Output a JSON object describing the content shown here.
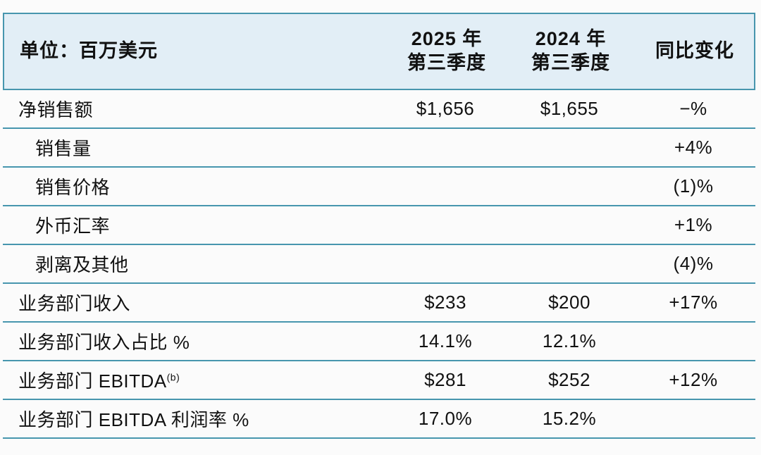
{
  "table": {
    "header": {
      "unit_label": "单位：百万美元",
      "col_2025": "2025 年\n第三季度",
      "col_2024": "2024 年\n第三季度",
      "col_change": "同比变化"
    },
    "rows": [
      {
        "label": "净销售额",
        "indent": false,
        "sup": "",
        "q3_2025": "$1,656",
        "q3_2024": "$1,655",
        "change": "−%"
      },
      {
        "label": "销售量",
        "indent": true,
        "sup": "",
        "q3_2025": "",
        "q3_2024": "",
        "change": "+4%"
      },
      {
        "label": "销售价格",
        "indent": true,
        "sup": "",
        "q3_2025": "",
        "q3_2024": "",
        "change": "(1)%"
      },
      {
        "label": "外币汇率",
        "indent": true,
        "sup": "",
        "q3_2025": "",
        "q3_2024": "",
        "change": "+1%"
      },
      {
        "label": "剥离及其他",
        "indent": true,
        "sup": "",
        "q3_2025": "",
        "q3_2024": "",
        "change": "(4)%"
      },
      {
        "label": "业务部门收入",
        "indent": false,
        "sup": "",
        "q3_2025": "$233",
        "q3_2024": "$200",
        "change": "+17%"
      },
      {
        "label": "业务部门收入占比 %",
        "indent": false,
        "sup": "",
        "q3_2025": "14.1%",
        "q3_2024": "12.1%",
        "change": ""
      },
      {
        "label": "业务部门 EBITDA",
        "indent": false,
        "sup": "(b)",
        "q3_2025": "$281",
        "q3_2024": "$252",
        "change": "+12%"
      },
      {
        "label": "业务部门 EBITDA 利润率 %",
        "indent": false,
        "sup": "",
        "q3_2025": "17.0%",
        "q3_2024": "15.2%",
        "change": ""
      }
    ],
    "colors": {
      "header_bg": "#e2eef6",
      "border": "#4796ae",
      "text": "#111111"
    }
  }
}
